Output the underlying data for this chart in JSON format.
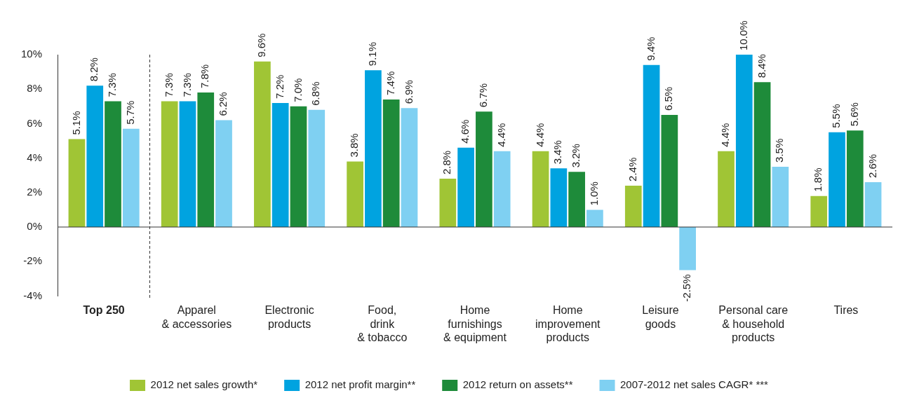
{
  "chart_data": {
    "type": "bar",
    "categories": [
      "Top 250",
      "Apparel\n& accessories",
      "Electronic\nproducts",
      "Food,\ndrink\n& tobacco",
      "Home\nfurnishings\n& equipment",
      "Home\nimprovement\nproducts",
      "Leisure\ngoods",
      "Personal care\n& household\nproducts",
      "Tires"
    ],
    "series": [
      {
        "name": "2012 net sales growth*",
        "color": "#a0c535",
        "values": [
          5.1,
          7.3,
          9.6,
          3.8,
          2.8,
          4.4,
          2.4,
          4.4,
          1.8
        ],
        "value_labels": [
          "5.1%",
          "7.3%",
          "9.6%",
          "3.8%",
          "2.8%",
          "4.4%",
          "2.4%",
          "4.4%",
          "1.8%"
        ]
      },
      {
        "name": "2012 net profit margin**",
        "color": "#00a3e0",
        "values": [
          8.2,
          7.3,
          7.2,
          9.1,
          4.6,
          3.4,
          9.4,
          10.0,
          5.5
        ],
        "value_labels": [
          "8.2%",
          "7.3%",
          "7.2%",
          "9.1%",
          "4.6%",
          "3.4%",
          "9.4%",
          "10.0%",
          "5.5%"
        ]
      },
      {
        "name": "2012 return on assets**",
        "color": "#1e8b3a",
        "values": [
          7.3,
          7.8,
          7.0,
          7.4,
          6.7,
          3.2,
          6.5,
          8.4,
          5.6
        ],
        "value_labels": [
          "7.3%",
          "7.8%",
          "7.0%",
          "7.4%",
          "6.7%",
          "3.2%",
          "6.5%",
          "8.4%",
          "5.6%"
        ]
      },
      {
        "name": "2007-2012 net sales CAGR* ***",
        "color": "#7fd0f2",
        "values": [
          5.7,
          6.2,
          6.8,
          6.9,
          4.4,
          1.0,
          -2.5,
          3.5,
          2.6
        ],
        "value_labels": [
          "5.7%",
          "6.2%",
          "6.8%",
          "6.9%",
          "4.4%",
          "1.0%",
          "-2.5%",
          "3.5%",
          "2.6%"
        ]
      }
    ],
    "ylim": [
      -4,
      10
    ],
    "yticks": [
      {
        "value": -4,
        "label": "-4%"
      },
      {
        "value": -2,
        "label": "-2%"
      },
      {
        "value": 0,
        "label": "0%"
      },
      {
        "value": 2,
        "label": "2%"
      },
      {
        "value": 4,
        "label": "4%"
      },
      {
        "value": 6,
        "label": "6%"
      },
      {
        "value": 8,
        "label": "8%"
      },
      {
        "value": 10,
        "label": "10%"
      }
    ],
    "ref_lines": [
      {
        "axis": "y",
        "value": 0,
        "color": "#333333"
      }
    ],
    "legend": "bottom"
  }
}
